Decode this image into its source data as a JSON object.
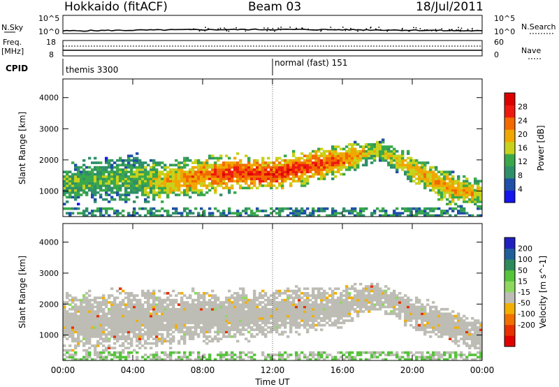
{
  "header": {
    "station": "Hokkaido (fitACF)",
    "beam": "Beam 03",
    "date": "18/Jul/2011"
  },
  "strip_labels": {
    "nsky": "N.Sky",
    "nsky_ticks": [
      "10^5",
      "10^0"
    ],
    "nsearch": "N.Search",
    "nsearch_ticks": [
      "10^5",
      "10^0"
    ],
    "freq_line1": "Freq.",
    "freq_line2": "[MHz]",
    "freq_ticks": [
      "18",
      "8"
    ],
    "nave": "Nave",
    "nave_ticks": [
      "60",
      "0"
    ],
    "cpid": "CPID"
  },
  "modes": [
    "themis 3300",
    "normal (fast) 151"
  ],
  "colors": {
    "power_scale": [
      "#1515ee",
      "#1f4fa8",
      "#2f8f6a",
      "#3aa84a",
      "#c8d21c",
      "#f0a800",
      "#f26a00",
      "#ee1a10",
      "#dd0000"
    ],
    "velocity_scale": [
      "#2020c0",
      "#205f9a",
      "#2f8a5a",
      "#55c43a",
      "#8fd860",
      "#bdbdb5",
      "#f2b000",
      "#f07000",
      "#e83000",
      "#e00000"
    ],
    "background_echo": "#bdbdb5"
  },
  "chart_data": [
    {
      "type": "heatmap",
      "title": "",
      "xlabel": "",
      "ylabel": "Slant Range [km]",
      "x_ticks": [
        "00:00",
        "04:00",
        "08:00",
        "12:00",
        "16:00",
        "20:00",
        "00:00"
      ],
      "xlim_hours": [
        0,
        24
      ],
      "y_ticks": [
        "1000",
        "2000",
        "3000",
        "4000"
      ],
      "ylim_km": [
        180,
        4600
      ],
      "colorbar": {
        "label": "Power [dB]",
        "ticks": [
          "4",
          "8",
          "12",
          "16",
          "20",
          "24",
          "28"
        ],
        "range": [
          0,
          32
        ]
      },
      "echo_bands": [
        {
          "t": 0.0,
          "center": 1250,
          "width": 700,
          "power": 14
        },
        {
          "t": 2.0,
          "center": 1350,
          "width": 800,
          "power": 13
        },
        {
          "t": 4.0,
          "center": 1400,
          "width": 900,
          "power": 14
        },
        {
          "t": 6.0,
          "center": 1300,
          "width": 700,
          "power": 20
        },
        {
          "t": 8.0,
          "center": 1500,
          "width": 700,
          "power": 24
        },
        {
          "t": 10.0,
          "center": 1600,
          "width": 650,
          "power": 27
        },
        {
          "t": 12.0,
          "center": 1550,
          "width": 600,
          "power": 28
        },
        {
          "t": 14.0,
          "center": 1800,
          "width": 650,
          "power": 26
        },
        {
          "t": 16.0,
          "center": 2000,
          "width": 550,
          "power": 24
        },
        {
          "t": 18.0,
          "center": 2350,
          "width": 400,
          "power": 16
        },
        {
          "t": 20.0,
          "center": 1700,
          "width": 500,
          "power": 20
        },
        {
          "t": 22.0,
          "center": 1100,
          "width": 600,
          "power": 22
        },
        {
          "t": 24.0,
          "center": 900,
          "width": 500,
          "power": 18
        }
      ]
    },
    {
      "type": "heatmap",
      "title": "",
      "xlabel": "Time UT",
      "ylabel": "Slant Range [km]",
      "x_ticks": [
        "00:00",
        "04:00",
        "08:00",
        "12:00",
        "16:00",
        "20:00",
        "00:00"
      ],
      "xlim_hours": [
        0,
        24
      ],
      "y_ticks": [
        "1000",
        "2000",
        "3000",
        "4000"
      ],
      "ylim_km": [
        180,
        4600
      ],
      "colorbar": {
        "label": "Velocity [m s^-1]",
        "ticks": [
          "200",
          "100",
          "50",
          "15",
          "-15",
          "-50",
          "-100",
          "-200"
        ],
        "range": [
          -250,
          250
        ]
      },
      "echo_bands": [
        {
          "t": 0.0,
          "center": 1400,
          "width": 1000,
          "velocity": 0
        },
        {
          "t": 4.0,
          "center": 1500,
          "width": 1100,
          "velocity": 0
        },
        {
          "t": 8.0,
          "center": 1600,
          "width": 900,
          "velocity": -10
        },
        {
          "t": 12.0,
          "center": 1700,
          "width": 900,
          "velocity": 0
        },
        {
          "t": 16.0,
          "center": 1900,
          "width": 700,
          "velocity": 5
        },
        {
          "t": 18.0,
          "center": 2300,
          "width": 500,
          "velocity": 20
        },
        {
          "t": 20.0,
          "center": 1700,
          "width": 600,
          "velocity": 0
        },
        {
          "t": 24.0,
          "center": 900,
          "width": 600,
          "velocity": 0
        }
      ]
    }
  ]
}
